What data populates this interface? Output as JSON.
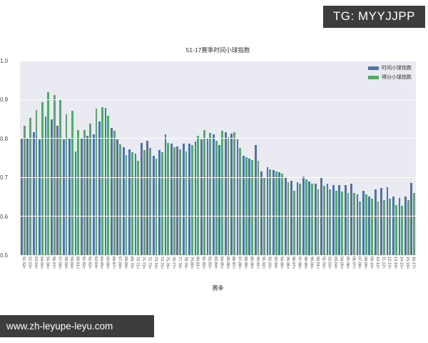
{
  "watermarks": {
    "top_right": "TG: MYYJJPP",
    "bottom_left": "www.zh-leyupe-leyu.com"
  },
  "chart_data": {
    "type": "bar",
    "title": "51-17赛季时间小球指数",
    "xlabel": "赛季",
    "ylim": [
      0.5,
      1.0
    ],
    "yticks": [
      "1.0",
      "0.9",
      "0.8",
      "0.7",
      "0.6",
      "0.5"
    ],
    "grid": true,
    "legend_position": "upper right",
    "plot_bg": "#e9eaf2",
    "tick_suffix": "<",
    "categories": [
      "51-52",
      "52-53",
      "53-54",
      "54-55",
      "55-56",
      "56-57",
      "57-58",
      "58-59",
      "59-60",
      "60-61",
      "61-62",
      "62-63",
      "63-64",
      "64-65",
      "65-66",
      "66-67",
      "67-68",
      "68-69",
      "69-70",
      "70-71",
      "71-72",
      "72-73",
      "73-74",
      "74-75",
      "75-76",
      "76-77",
      "77-78",
      "78-79",
      "79-80",
      "80-81",
      "81-82",
      "82-83",
      "83-84",
      "84-85",
      "85-86",
      "86-87",
      "87-88",
      "88-89",
      "89-90",
      "90-91",
      "91-92",
      "92-93",
      "93-94",
      "94-95",
      "95-96",
      "96-97",
      "97-98",
      "98-99",
      "99-00",
      "00-01",
      "01-02",
      "02-03",
      "03-04",
      "04-05",
      "05-06",
      "06-07",
      "07-08",
      "08-09",
      "09-10",
      "10-11",
      "11-12",
      "12-13",
      "13-14",
      "14-15",
      "15-16",
      "16-17"
    ],
    "series": [
      {
        "name": "时间小球指数",
        "color": "#4C72B0",
        "values": [
          0.8,
          0.802,
          0.816,
          0.798,
          0.856,
          0.85,
          0.832,
          0.798,
          0.8,
          0.767,
          0.8,
          0.807,
          0.81,
          0.843,
          0.878,
          0.827,
          0.798,
          0.778,
          0.773,
          0.761,
          0.789,
          0.795,
          0.755,
          0.77,
          0.81,
          0.787,
          0.779,
          0.786,
          0.786,
          0.792,
          0.798,
          0.802,
          0.811,
          0.783,
          0.816,
          0.813,
          0.798,
          0.755,
          0.749,
          0.783,
          0.715,
          0.727,
          0.718,
          0.714,
          0.7,
          0.691,
          0.688,
          0.703,
          0.69,
          0.684,
          0.7,
          0.684,
          0.681,
          0.681,
          0.68,
          0.683,
          0.657,
          0.666,
          0.651,
          0.669,
          0.672,
          0.675,
          0.651,
          0.648,
          0.651,
          0.685
        ]
      },
      {
        "name": "得分小球指数",
        "color": "#55A868",
        "values": [
          0.832,
          0.853,
          0.874,
          0.893,
          0.92,
          0.912,
          0.9,
          0.862,
          0.871,
          0.822,
          0.822,
          0.838,
          0.877,
          0.88,
          0.858,
          0.819,
          0.785,
          0.758,
          0.764,
          0.743,
          0.77,
          0.776,
          0.749,
          0.764,
          0.789,
          0.778,
          0.773,
          0.767,
          0.783,
          0.807,
          0.822,
          0.814,
          0.795,
          0.819,
          0.804,
          0.816,
          0.776,
          0.752,
          0.745,
          0.743,
          0.7,
          0.721,
          0.715,
          0.71,
          0.688,
          0.666,
          0.684,
          0.694,
          0.684,
          0.669,
          0.678,
          0.669,
          0.666,
          0.663,
          0.66,
          0.66,
          0.638,
          0.657,
          0.645,
          0.638,
          0.641,
          0.645,
          0.629,
          0.626,
          0.641,
          0.66
        ]
      }
    ]
  }
}
